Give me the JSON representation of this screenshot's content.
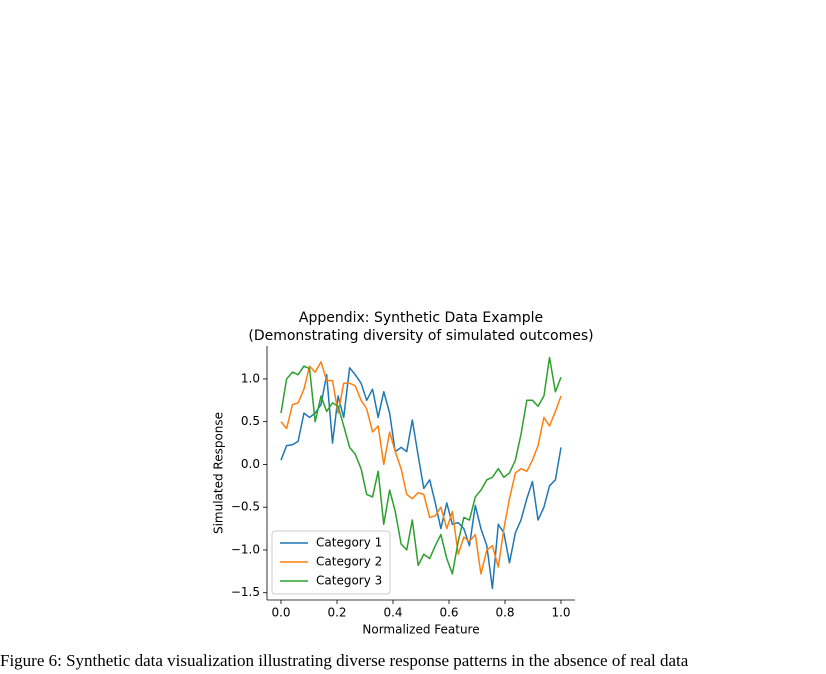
{
  "chart_data": {
    "type": "line",
    "title_lines": [
      "Appendix: Synthetic Data Example",
      "(Demonstrating diversity of simulated outcomes)"
    ],
    "xlabel": "Normalized Feature",
    "ylabel": "Simulated Response",
    "x": [
      0,
      0.02,
      0.041,
      0.061,
      0.082,
      0.102,
      0.122,
      0.143,
      0.163,
      0.184,
      0.204,
      0.224,
      0.245,
      0.265,
      0.286,
      0.306,
      0.327,
      0.347,
      0.367,
      0.388,
      0.408,
      0.429,
      0.449,
      0.469,
      0.49,
      0.51,
      0.531,
      0.551,
      0.571,
      0.592,
      0.612,
      0.633,
      0.653,
      0.673,
      0.694,
      0.714,
      0.735,
      0.755,
      0.776,
      0.796,
      0.816,
      0.837,
      0.857,
      0.878,
      0.898,
      0.918,
      0.939,
      0.959,
      0.98,
      1.0
    ],
    "series": [
      {
        "name": "Category 1",
        "color": "#1f77b4",
        "values": [
          0.05,
          0.22,
          0.23,
          0.27,
          0.6,
          0.55,
          0.6,
          0.7,
          1.05,
          0.25,
          0.8,
          0.55,
          1.13,
          1.05,
          0.95,
          0.75,
          0.88,
          0.55,
          0.85,
          0.6,
          0.15,
          0.2,
          0.15,
          0.52,
          0.1,
          -0.28,
          -0.18,
          -0.45,
          -0.75,
          -0.45,
          -0.7,
          -0.68,
          -0.75,
          -0.95,
          -0.48,
          -0.75,
          -0.95,
          -1.45,
          -0.7,
          -0.8,
          -1.15,
          -0.8,
          -0.65,
          -0.4,
          -0.2,
          -0.65,
          -0.5,
          -0.25,
          -0.18,
          0.2
        ]
      },
      {
        "name": "Category 2",
        "color": "#ff7f0e",
        "values": [
          0.5,
          0.42,
          0.7,
          0.72,
          0.88,
          1.15,
          1.08,
          1.2,
          0.98,
          0.98,
          0.6,
          0.95,
          0.95,
          0.92,
          0.75,
          0.65,
          0.38,
          0.45,
          0.0,
          0.38,
          0.15,
          -0.05,
          -0.35,
          -0.4,
          -0.33,
          -0.35,
          -0.62,
          -0.6,
          -0.5,
          -0.75,
          -0.55,
          -1.05,
          -0.85,
          -0.9,
          -0.82,
          -1.28,
          -1.0,
          -0.95,
          -1.2,
          -0.75,
          -0.4,
          -0.1,
          -0.05,
          -0.08,
          0.05,
          0.22,
          0.55,
          0.45,
          0.62,
          0.8
        ]
      },
      {
        "name": "Category 3",
        "color": "#2ca02c",
        "values": [
          0.6,
          1.0,
          1.08,
          1.05,
          1.15,
          1.12,
          0.5,
          0.8,
          0.62,
          0.72,
          0.68,
          0.45,
          0.2,
          0.12,
          -0.05,
          -0.35,
          -0.38,
          -0.08,
          -0.7,
          -0.3,
          -0.55,
          -0.93,
          -1.0,
          -0.65,
          -1.18,
          -1.05,
          -1.1,
          -0.95,
          -0.82,
          -1.1,
          -1.28,
          -0.9,
          -0.62,
          -0.65,
          -0.38,
          -0.3,
          -0.18,
          -0.15,
          -0.05,
          -0.15,
          -0.1,
          0.05,
          0.35,
          0.75,
          0.75,
          0.68,
          0.8,
          1.25,
          0.85,
          1.02
        ]
      }
    ],
    "xlim": [
      -0.05,
      1.05
    ],
    "ylim": [
      -1.585,
      1.385
    ],
    "xticks": [
      {
        "value": 0,
        "label": "0.0"
      },
      {
        "value": 0.2,
        "label": "0.2"
      },
      {
        "value": 0.4,
        "label": "0.4"
      },
      {
        "value": 0.6,
        "label": "0.6"
      },
      {
        "value": 0.8,
        "label": "0.8"
      },
      {
        "value": 1,
        "label": "1.0"
      }
    ],
    "yticks": [
      {
        "value": -1.5,
        "label": "−1.5"
      },
      {
        "value": -1,
        "label": "−1.0"
      },
      {
        "value": -0.5,
        "label": "−0.5"
      },
      {
        "value": 0,
        "label": "0.0"
      },
      {
        "value": 0.5,
        "label": "0.5"
      },
      {
        "value": 1,
        "label": "1.0"
      }
    ],
    "legend": "lower left",
    "caption": "Figure 6: Synthetic data visualization illustrating diverse response patterns in the absence of real data"
  }
}
